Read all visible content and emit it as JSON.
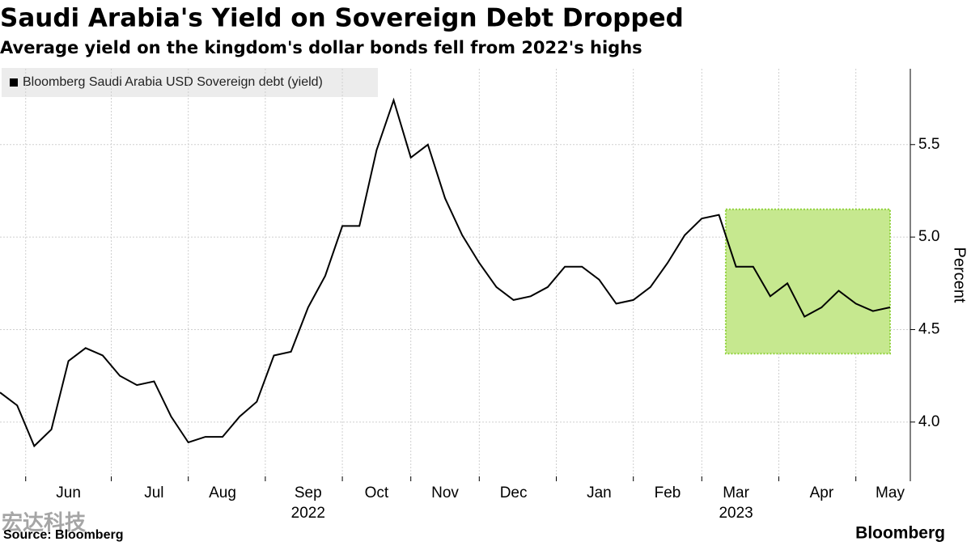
{
  "chart_data": {
    "type": "line",
    "title": "Saudi Arabia's Yield on Sovereign Debt Dropped",
    "subtitle": "Average yield on the kingdom's dollar bonds fell from 2022's highs",
    "y_label": "Percent",
    "source": "Source: Bloomberg",
    "brand": "Bloomberg",
    "watermark": "宏达科技",
    "categories": [
      null,
      null,
      null,
      null,
      "Jun",
      null,
      null,
      null,
      null,
      "Jul",
      null,
      null,
      null,
      "Aug",
      null,
      null,
      null,
      null,
      "Sep",
      null,
      null,
      null,
      "Oct",
      null,
      null,
      null,
      "Nov",
      null,
      null,
      null,
      "Dec",
      null,
      null,
      null,
      null,
      "Jan",
      null,
      null,
      null,
      "Feb",
      null,
      null,
      null,
      "Mar",
      null,
      null,
      null,
      null,
      "Apr",
      null,
      null,
      null,
      "May"
    ],
    "year_labels": [
      {
        "label": "2022",
        "category": "Sep"
      },
      {
        "label": "2023",
        "category": "Mar"
      }
    ],
    "series": [
      {
        "name": "Bloomberg Saudi Arabia USD Sovereign debt (yield)",
        "color": "#000000",
        "values": [
          4.16,
          4.09,
          3.87,
          3.96,
          4.33,
          4.4,
          4.36,
          4.25,
          4.2,
          4.22,
          4.03,
          3.89,
          3.92,
          3.92,
          4.03,
          4.11,
          4.36,
          4.38,
          4.62,
          4.79,
          5.06,
          5.06,
          5.47,
          5.74,
          5.43,
          5.5,
          5.21,
          5.01,
          4.86,
          4.73,
          4.66,
          4.68,
          4.73,
          4.84,
          4.84,
          4.77,
          4.64,
          4.66,
          4.73,
          4.86,
          5.01,
          5.1,
          5.12,
          4.84,
          4.84,
          4.68,
          4.75,
          4.57,
          4.62,
          4.71,
          4.64,
          4.6,
          4.62
        ]
      }
    ],
    "highlight": {
      "from_category": "Mar",
      "ylim": [
        4.37,
        5.15
      ],
      "color": "#c6e88f",
      "border": "#8fd13a"
    },
    "ylim": [
      3.68,
      5.91
    ],
    "yticks": [
      {
        "value": 4,
        "label": "4.0"
      },
      4.5,
      {
        "value": 5,
        "label": "5.0"
      },
      5.5
    ],
    "grid": true
  }
}
